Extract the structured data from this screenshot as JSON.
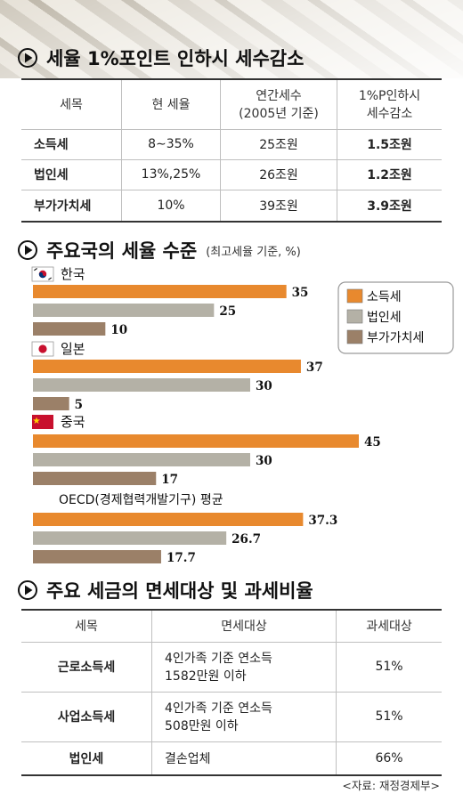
{
  "section1": {
    "title": "세율 1%포인트 인하시 세수감소",
    "headers": [
      "세목",
      "현 세율",
      "연간세수 (2005년 기준)",
      "1%P인하시 세수감소"
    ],
    "header_lines": [
      [
        "세목"
      ],
      [
        "현 세율"
      ],
      [
        "연간세수",
        "(2005년 기준)"
      ],
      [
        "1%P인하시",
        "세수감소"
      ]
    ],
    "rows": [
      {
        "tax": "소득세",
        "rate": "8∼35%",
        "revenue": "25조원",
        "decrease": "1.5조원"
      },
      {
        "tax": "법인세",
        "rate": "13%,25%",
        "revenue": "26조원",
        "decrease": "1.2조원"
      },
      {
        "tax": "부가가치세",
        "rate": "10%",
        "revenue": "39조원",
        "decrease": "3.9조원"
      }
    ]
  },
  "section2": {
    "title": "주요국의 세율 수준",
    "note": "(최고세율 기준, %)"
  },
  "chart_data": {
    "type": "bar",
    "title": "주요국의 세율 수준",
    "subtitle": "(최고세율 기준, %)",
    "orientation": "horizontal",
    "categories": [
      "한국",
      "일본",
      "중국",
      "OECD(경제협력개발기구) 평균"
    ],
    "series": [
      {
        "name": "소득세",
        "color": "#e8892e",
        "values": [
          35,
          37,
          45,
          37.3
        ]
      },
      {
        "name": "법인세",
        "color": "#b4b1a6",
        "values": [
          25,
          30,
          30,
          26.7
        ]
      },
      {
        "name": "부가가치세",
        "color": "#9b8068",
        "values": [
          10,
          5,
          17,
          17.7
        ]
      }
    ],
    "value_labels": [
      [
        "35",
        "25",
        "10"
      ],
      [
        "37",
        "30",
        "5"
      ],
      [
        "45",
        "30",
        "17"
      ],
      [
        "37.3",
        "26.7",
        "17.7"
      ]
    ],
    "xlim": [
      0,
      46
    ],
    "grid": false,
    "legend": "top-right"
  },
  "section3": {
    "title": "주요 세금의 면세대상 및 과세비율",
    "headers": [
      "세목",
      "면세대상",
      "과세대상"
    ],
    "rows": [
      {
        "tax": "근로소득세",
        "exempt_lines": [
          "4인가족 기준 연소득",
          "1582만원 이하"
        ],
        "taxed": "51%"
      },
      {
        "tax": "사업소득세",
        "exempt_lines": [
          "4인가족 기준 연소득",
          "508만원 이하"
        ],
        "taxed": "51%"
      },
      {
        "tax": "법인세",
        "exempt_lines": [
          "결손업체"
        ],
        "taxed": "66%"
      }
    ]
  },
  "source": "<자료: 재정경제부>",
  "icons": {
    "section_marker": "play-circle-icon",
    "flags": [
      "korea-flag-icon",
      "japan-flag-icon",
      "china-flag-icon"
    ]
  }
}
